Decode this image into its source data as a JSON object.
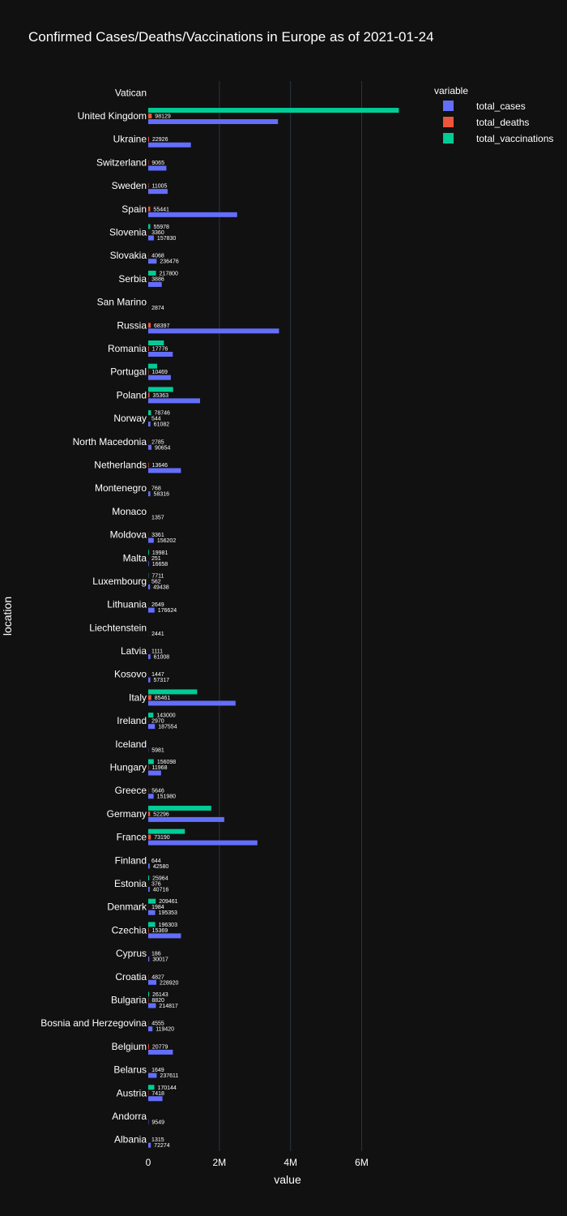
{
  "chart_data": {
    "type": "bar",
    "orientation": "horizontal",
    "barmode": "group",
    "title": "Confirmed Cases/Deaths/Vaccinations in Europe as of 2021-01-24",
    "xlabel": "value",
    "ylabel": "location",
    "xlim": [
      0,
      7400000
    ],
    "xticks": [
      0,
      2000000,
      4000000,
      6000000
    ],
    "xtick_labels": [
      "0",
      "2M",
      "4M",
      "6M"
    ],
    "grid": "vertical",
    "legend": {
      "title": "variable",
      "position": "top-right"
    },
    "colors": {
      "background": "#111111",
      "text": "#ffffff",
      "grid": "#283442"
    },
    "categories": [
      "Vatican",
      "United Kingdom",
      "Ukraine",
      "Switzerland",
      "Sweden",
      "Spain",
      "Slovenia",
      "Slovakia",
      "Serbia",
      "San Marino",
      "Russia",
      "Romania",
      "Portugal",
      "Poland",
      "Norway",
      "North Macedonia",
      "Netherlands",
      "Montenegro",
      "Monaco",
      "Moldova",
      "Malta",
      "Luxembourg",
      "Lithuania",
      "Liechtenstein",
      "Latvia",
      "Kosovo",
      "Italy",
      "Ireland",
      "Iceland",
      "Hungary",
      "Greece",
      "Germany",
      "France",
      "Finland",
      "Estonia",
      "Denmark",
      "Czechia",
      "Cyprus",
      "Croatia",
      "Bulgaria",
      "Bosnia and Herzegovina",
      "Belgium",
      "Belarus",
      "Austria",
      "Andorra",
      "Albania"
    ],
    "series": [
      {
        "name": "total_cases",
        "color": "#636efa",
        "values": [
          null,
          3647463,
          1200000,
          510000,
          545000,
          2499000,
          157830,
          236476,
          380000,
          2874,
          3677000,
          690000,
          636000,
          1457000,
          61082,
          90654,
          920000,
          58316,
          1357,
          156202,
          16658,
          49438,
          176624,
          2441,
          61008,
          57317,
          2455000,
          187554,
          5981,
          361000,
          151980,
          2137000,
          3069000,
          42580,
          40716,
          195353,
          921000,
          30017,
          228920,
          214817,
          119420,
          692000,
          237611,
          400000,
          9549,
          72274
        ],
        "labels": [
          null,
          "",
          "",
          "",
          "",
          "",
          "157830",
          "236476",
          "",
          "2874",
          "",
          "",
          "",
          "",
          "61082",
          "90654",
          "",
          "58316",
          "1357",
          "156202",
          "16658",
          "49438",
          "176624",
          "2441",
          "61008",
          "57317",
          "",
          "187554",
          "5981",
          "",
          "151980",
          "",
          "",
          "42580",
          "40716",
          "195353",
          "",
          "30017",
          "228920",
          "214817",
          "119420",
          "",
          "237611",
          "",
          "9549",
          "72274"
        ]
      },
      {
        "name": "total_deaths",
        "color": "#ef553b",
        "values": [
          null,
          98129,
          22926,
          9065,
          11005,
          55441,
          3360,
          4068,
          3886,
          null,
          68397,
          17776,
          10469,
          35363,
          544,
          2785,
          13646,
          768,
          null,
          3361,
          251,
          562,
          2649,
          null,
          1111,
          1447,
          85461,
          2970,
          null,
          11968,
          5646,
          52296,
          73190,
          644,
          376,
          1984,
          15369,
          186,
          4827,
          8820,
          4555,
          20779,
          1649,
          7418,
          null,
          1315
        ],
        "labels": [
          null,
          "98129",
          "22926",
          "9065",
          "11005",
          "55441",
          "3360",
          "4068",
          "3886",
          null,
          "68397",
          "17776",
          "10469",
          "35363",
          "544",
          "2785",
          "13646",
          "768",
          null,
          "3361",
          "251",
          "562",
          "2649",
          null,
          "1111",
          "1447",
          "85461",
          "2970",
          null,
          "11968",
          "5646",
          "52296",
          "73190",
          "644",
          "376",
          "1984",
          "15369",
          "186",
          "4827",
          "8820",
          "4555",
          "20779",
          "1649",
          "7418",
          null,
          "1315"
        ]
      },
      {
        "name": "total_vaccinations",
        "color": "#00cc96",
        "values": [
          null,
          7044000,
          null,
          null,
          null,
          null,
          55978,
          null,
          217800,
          null,
          null,
          440000,
          250000,
          700000,
          78746,
          null,
          null,
          null,
          null,
          null,
          19981,
          7711,
          null,
          null,
          null,
          null,
          1375000,
          143000,
          null,
          156098,
          null,
          1770000,
          1030000,
          null,
          25964,
          209461,
          196303,
          null,
          null,
          26143,
          null,
          null,
          null,
          170144,
          null,
          null
        ],
        "labels": [
          null,
          "",
          null,
          null,
          null,
          null,
          "55978",
          null,
          "217800",
          null,
          null,
          "",
          "",
          "",
          "78746",
          null,
          null,
          null,
          null,
          null,
          "19981",
          "7711",
          null,
          null,
          null,
          null,
          "",
          "143000",
          null,
          "156098",
          null,
          "",
          "",
          null,
          "25964",
          "209461",
          "196303",
          null,
          null,
          "26143",
          null,
          null,
          null,
          "170144",
          null,
          null
        ]
      }
    ]
  }
}
